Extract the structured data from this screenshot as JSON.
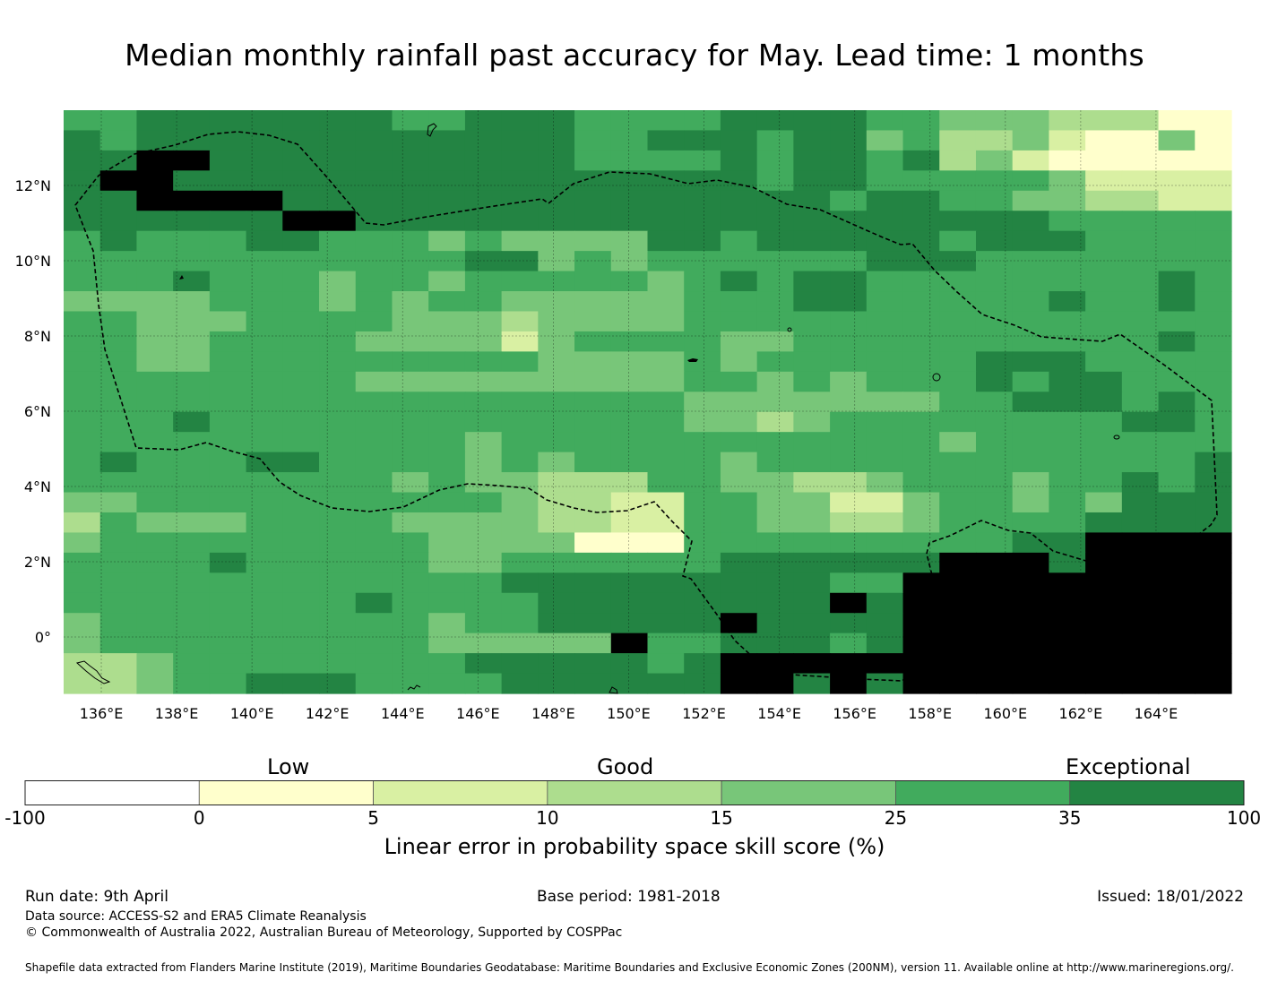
{
  "title": "Median monthly rainfall past accuracy for May. Lead time: 1 months",
  "map": {
    "lon_range": [
      135,
      166
    ],
    "lat_range": [
      -1.5,
      14
    ],
    "lon_ticks": [
      "136°E",
      "138°E",
      "140°E",
      "142°E",
      "144°E",
      "146°E",
      "148°E",
      "150°E",
      "152°E",
      "154°E",
      "156°E",
      "158°E",
      "160°E",
      "162°E",
      "164°E"
    ],
    "lat_ticks": [
      "12°N",
      "10°N",
      "8°N",
      "6°N",
      "4°N",
      "2°N",
      "0°"
    ],
    "grid_lines": true,
    "eez_boundary": "dashed black line",
    "skill_grid_rows_north_to_south": [
      "55666666655666555566665544433311",
      "65666666666666556665664533421141",
      "66776666666666555565665634211111",
      "67766666666666666665665555542222",
      "66777766666666666666656655443322",
      "66666677666666666666666666655555",
      "56555665554544446656666656665555",
      "55555555555664545555556665555555",
      "55565554554555554565665555555565",
      "44445554545544444555665555565565",
      "55444555544434444555555555555555",
      "55445555444424555544555555555565",
      "55445555555554444545555556665555",
      "55555555444444444554545556566555",
      "55555555555555555444444455666565",
      "55565555555555555443455555555665",
      "55555555555455555555555545555555",
      "56555665555454555545555555555556",
      "55555555545443335544334555455656",
      "44555555555543322554422455454666",
      "35444555544443322554433455556666",
      "45555555554444111555555555667777",
      "55556555554455555566666677767777",
      "55555555555566666666655777777777",
      "55555555655556666666676777777777",
      "45555555554556666676666777777777",
      "45555555554444475566656777777777",
      "33455555555666665677777777777777",
      "33455666555566666677676777777777"
    ]
  },
  "legend": {
    "categories": [
      "Low",
      "Good",
      "Exceptional"
    ],
    "bins": [
      {
        "from": -100,
        "to": 0,
        "color": "#ffffff"
      },
      {
        "from": 0,
        "to": 5,
        "color": "#ffffcc"
      },
      {
        "from": 5,
        "to": 10,
        "color": "#d9f0a3"
      },
      {
        "from": 10,
        "to": 15,
        "color": "#addd8e"
      },
      {
        "from": 15,
        "to": 25,
        "color": "#78c679"
      },
      {
        "from": 25,
        "to": 35,
        "color": "#41ab5d"
      },
      {
        "from": 35,
        "to": 100,
        "color": "#238443"
      }
    ],
    "tick_labels": [
      "-100",
      "0",
      "5",
      "10",
      "15",
      "25",
      "35",
      "100"
    ],
    "title": "Linear error in probability space skill score (%)"
  },
  "footer": {
    "run_date": "Run date: 9th April",
    "base_period": "Base period: 1981-2018",
    "issued": "Issued: 18/01/2022",
    "data_source": "Data source: ACCESS-S2 and ERA5 Climate Reanalysis",
    "copyright": "© Commonwealth of Australia 2022, Australian Bureau of Meteorology, Supported by COSPPac",
    "shapefile": "Shapefile data extracted from Flanders Marine Institute (2019), Maritime Boundaries Geodatabase: Maritime Boundaries and Exclusive Economic Zones (200NM), version 11. Available online at http://www.marineregions.org/."
  }
}
